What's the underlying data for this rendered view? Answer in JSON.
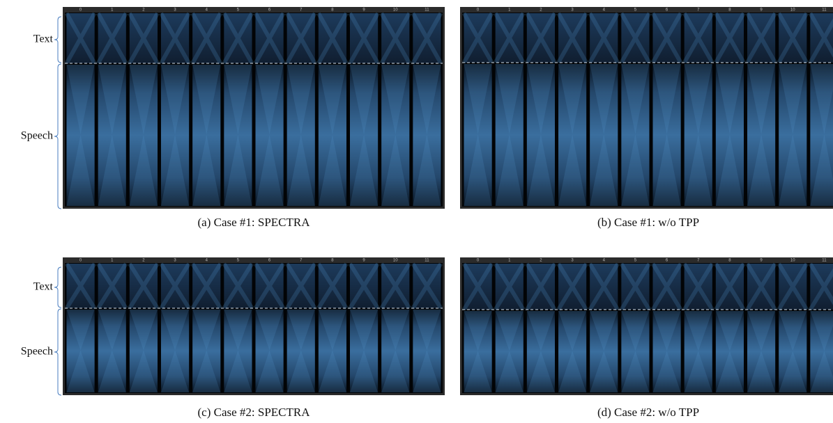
{
  "panels": [
    {
      "caption": "(a)  Case #1: SPECTRA",
      "heads": [
        "0",
        "1",
        "2",
        "3",
        "4",
        "5",
        "6",
        "7",
        "8",
        "9",
        "10",
        "11"
      ],
      "row_labels": [
        "Text",
        "Speech"
      ]
    },
    {
      "caption": "(b)  Case #1: w/o TPP",
      "heads": [
        "0",
        "1",
        "2",
        "3",
        "4",
        "5",
        "6",
        "7",
        "8",
        "9",
        "10",
        "11"
      ]
    },
    {
      "caption": "(c)  Case #2: SPECTRA",
      "heads": [
        "0",
        "1",
        "2",
        "3",
        "4",
        "5",
        "6",
        "7",
        "8",
        "9",
        "10",
        "11"
      ],
      "row_labels": [
        "Text",
        "Speech"
      ]
    },
    {
      "caption": "(d)  Case #2: w/o TPP",
      "heads": [
        "0",
        "1",
        "2",
        "3",
        "4",
        "5",
        "6",
        "7",
        "8",
        "9",
        "10",
        "11"
      ]
    }
  ]
}
